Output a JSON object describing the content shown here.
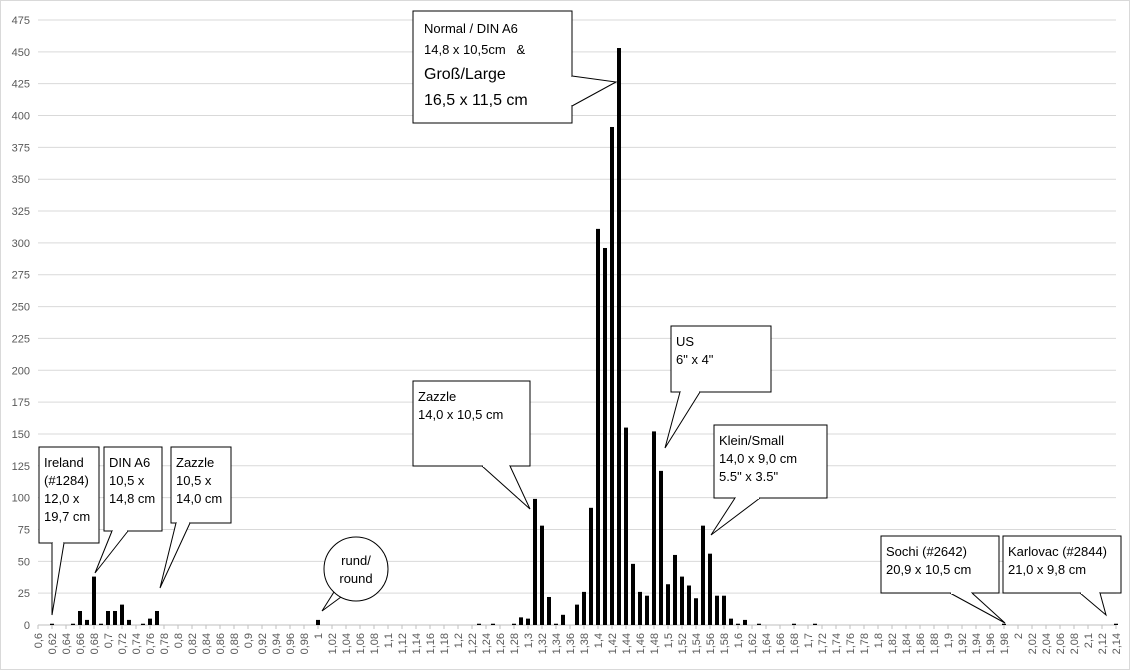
{
  "chart_data": {
    "type": "bar",
    "xlim": [
      0.6,
      2.14
    ],
    "ylim": [
      0,
      475
    ],
    "ytick_step": 25,
    "xtick_step": 0.02,
    "grid": "horizontal",
    "legend": "none",
    "bar_color": "#000000",
    "x": [
      0.62,
      0.65,
      0.66,
      0.67,
      0.68,
      0.69,
      0.7,
      0.71,
      0.72,
      0.73,
      0.75,
      0.76,
      0.77,
      1.0,
      1.23,
      1.25,
      1.28,
      1.29,
      1.3,
      1.31,
      1.32,
      1.33,
      1.34,
      1.35,
      1.37,
      1.38,
      1.39,
      1.4,
      1.41,
      1.42,
      1.43,
      1.44,
      1.45,
      1.46,
      1.47,
      1.48,
      1.49,
      1.5,
      1.51,
      1.52,
      1.53,
      1.54,
      1.55,
      1.56,
      1.57,
      1.58,
      1.59,
      1.6,
      1.61,
      1.63,
      1.68,
      1.71,
      1.98,
      2.14
    ],
    "values": [
      1,
      1,
      11,
      4,
      38,
      1,
      11,
      11,
      16,
      4,
      1,
      5,
      11,
      4,
      1,
      1,
      1,
      6,
      5,
      99,
      78,
      22,
      1,
      8,
      16,
      26,
      92,
      311,
      296,
      391,
      453,
      155,
      48,
      26,
      23,
      152,
      121,
      32,
      55,
      38,
      31,
      21,
      78,
      56,
      23,
      23,
      5,
      1,
      4,
      1,
      1,
      1,
      1,
      1
    ],
    "x_tick_labels": [
      "0,6",
      "0,62",
      "0,64",
      "0,66",
      "0,68",
      "0,7",
      "0,72",
      "0,74",
      "0,76",
      "0,78",
      "0,8",
      "0,82",
      "0,84",
      "0,86",
      "0,88",
      "0,9",
      "0,92",
      "0,94",
      "0,96",
      "0,98",
      "1",
      "1,02",
      "1,04",
      "1,06",
      "1,08",
      "1,1",
      "1,12",
      "1,14",
      "1,16",
      "1,18",
      "1,2",
      "1,22",
      "1,24",
      "1,26",
      "1,28",
      "1,3",
      "1,32",
      "1,34",
      "1,36",
      "1,38",
      "1,4",
      "1,42",
      "1,44",
      "1,46",
      "1,48",
      "1,5",
      "1,52",
      "1,54",
      "1,56",
      "1,58",
      "1,6",
      "1,62",
      "1,64",
      "1,66",
      "1,68",
      "1,7",
      "1,72",
      "1,74",
      "1,76",
      "1,78",
      "1,8",
      "1,82",
      "1,84",
      "1,86",
      "1,88",
      "1,9",
      "1,92",
      "1,94",
      "1,96",
      "1,98",
      "2",
      "2,02",
      "2,04",
      "2,06",
      "2,08",
      "2,1",
      "2,12",
      "2,14"
    ],
    "y_tick_labels": [
      "0",
      "25",
      "50",
      "75",
      "100",
      "125",
      "150",
      "175",
      "200",
      "225",
      "250",
      "275",
      "300",
      "325",
      "350",
      "375",
      "400",
      "425",
      "450",
      "475"
    ],
    "annotations": [
      {
        "id": "ireland",
        "shape": "rect",
        "lines": [
          "Ireland",
          "(#1284)",
          "12,0 x",
          "19,7 cm"
        ]
      },
      {
        "id": "din-a6-small",
        "shape": "rect",
        "lines": [
          "DIN A6",
          "10,5 x",
          "14,8 cm"
        ]
      },
      {
        "id": "zazzle-small",
        "shape": "rect",
        "lines": [
          "Zazzle",
          "10,5 x",
          "14,0 cm"
        ]
      },
      {
        "id": "round",
        "shape": "ellipse",
        "lines": [
          "rund/",
          "round"
        ]
      },
      {
        "id": "zazzle-mid",
        "shape": "rect",
        "lines": [
          "Zazzle",
          "14,0 x 10,5 cm"
        ]
      },
      {
        "id": "normal-large",
        "shape": "rect",
        "lines": [
          "Normal / DIN A6",
          "14,8 x 10,5cm   &",
          "Groß/Large",
          "16,5 x 11,5 cm"
        ]
      },
      {
        "id": "us",
        "shape": "rect",
        "lines": [
          "US",
          "6\" x 4\""
        ]
      },
      {
        "id": "klein-small",
        "shape": "rect",
        "lines": [
          "Klein/Small",
          "14,0 x 9,0 cm",
          "5.5\" x 3.5\""
        ]
      },
      {
        "id": "sochi",
        "shape": "rect",
        "lines": [
          "Sochi (#2642)",
          "20,9 x 10,5 cm"
        ]
      },
      {
        "id": "karlovac",
        "shape": "rect",
        "lines": [
          "Karlovac (#2844)",
          "21,0 x 9,8 cm"
        ]
      }
    ]
  }
}
